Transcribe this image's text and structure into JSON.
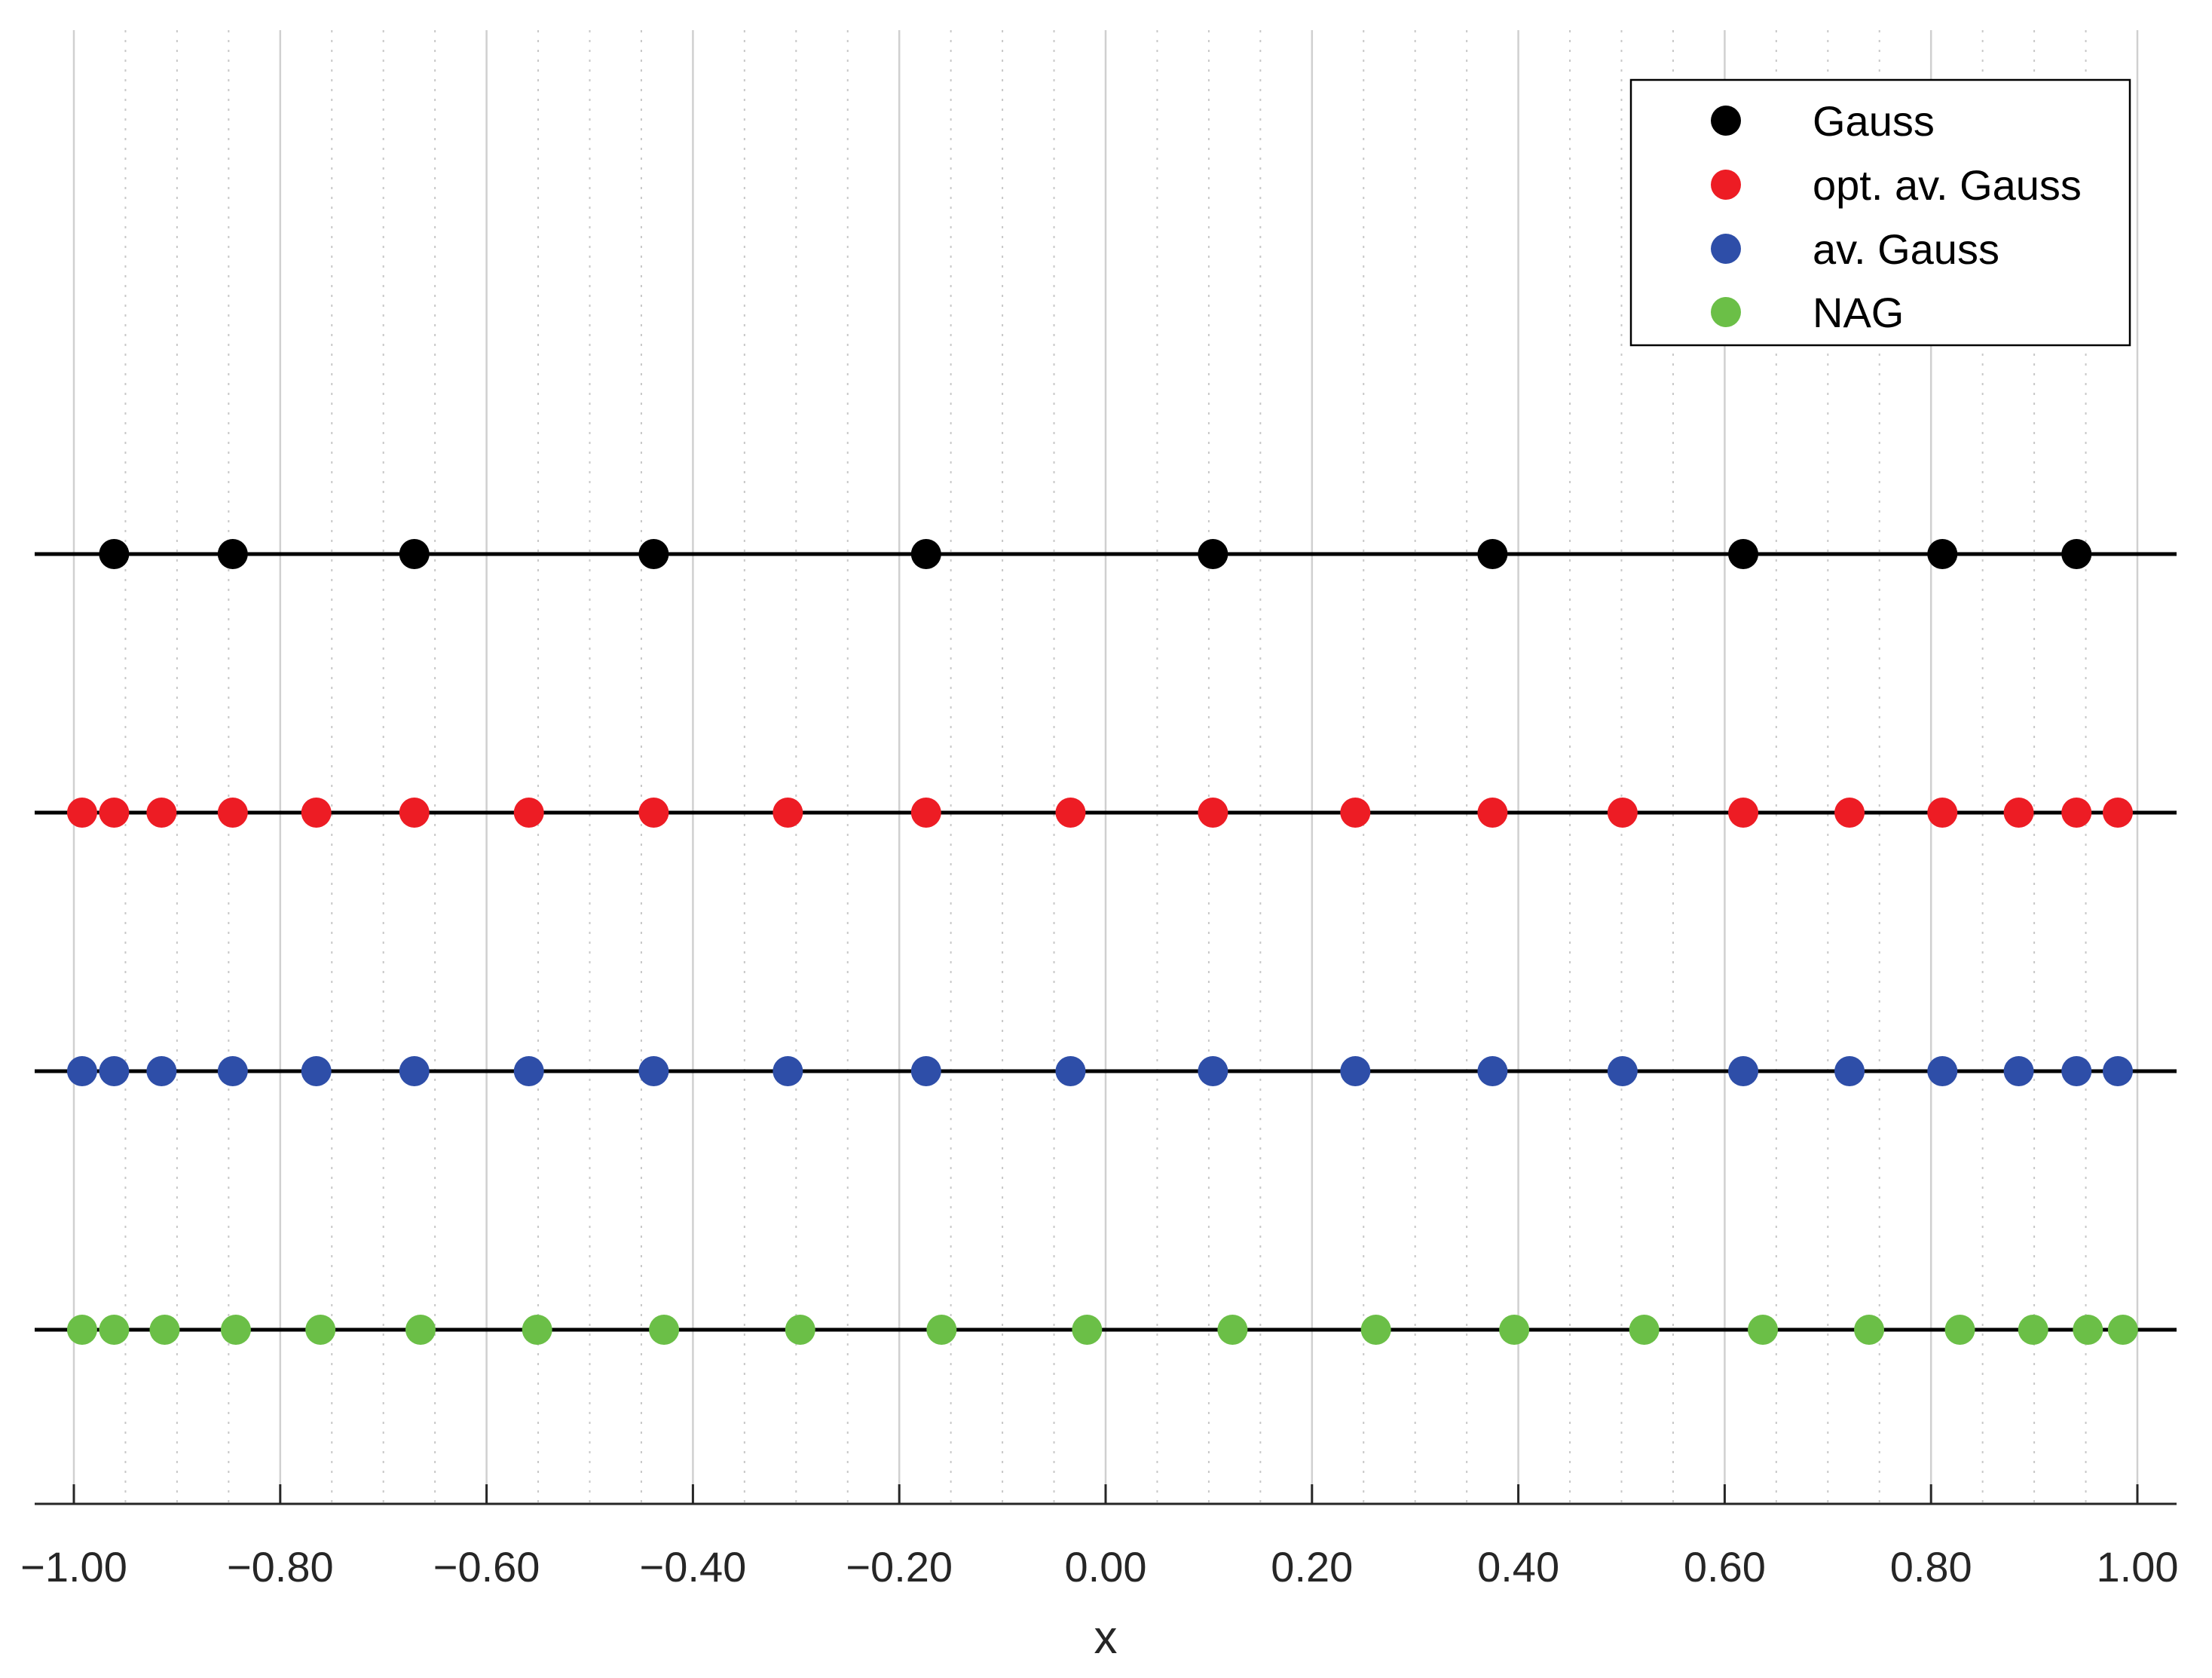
{
  "chart_data": {
    "type": "scatter",
    "xlabel": "x",
    "xlim": [
      -1.0,
      1.0
    ],
    "x_ticks": [
      -1.0,
      -0.8,
      -0.6,
      -0.4,
      -0.2,
      0.0,
      0.2,
      0.4,
      0.6,
      0.8,
      1.0
    ],
    "x_tick_labels": [
      "−1.00",
      "−0.80",
      "−0.60",
      "−0.40",
      "−0.20",
      "0.00",
      "0.20",
      "0.40",
      "0.60",
      "0.80",
      "1.00"
    ],
    "minor_grid_step": 0.05,
    "grid": true,
    "legend_position": "top-right",
    "series": [
      {
        "name": "Gauss",
        "color": "#000000",
        "x": [
          -0.961,
          -0.846,
          -0.67,
          -0.438,
          -0.174,
          0.104,
          0.375,
          0.618,
          0.811,
          0.941
        ]
      },
      {
        "name": "opt. av. Gauss",
        "color": "#ed1c24",
        "x": [
          -0.992,
          -0.961,
          -0.915,
          -0.846,
          -0.765,
          -0.67,
          -0.559,
          -0.438,
          -0.308,
          -0.174,
          -0.034,
          0.104,
          0.242,
          0.375,
          0.501,
          0.618,
          0.721,
          0.811,
          0.885,
          0.941,
          0.981
        ]
      },
      {
        "name": "av. Gauss",
        "color": "#2e4ea8",
        "x": [
          -0.992,
          -0.961,
          -0.915,
          -0.846,
          -0.765,
          -0.67,
          -0.559,
          -0.438,
          -0.308,
          -0.174,
          -0.034,
          0.104,
          0.242,
          0.375,
          0.501,
          0.618,
          0.721,
          0.811,
          0.885,
          0.941,
          0.981
        ]
      },
      {
        "name": "NAG",
        "color": "#6bbf47",
        "x": [
          -0.992,
          -0.961,
          -0.912,
          -0.843,
          -0.761,
          -0.664,
          -0.551,
          -0.428,
          -0.296,
          -0.159,
          -0.018,
          0.123,
          0.262,
          0.396,
          0.522,
          0.637,
          0.74,
          0.828,
          0.899,
          0.952,
          0.986
        ]
      }
    ]
  }
}
